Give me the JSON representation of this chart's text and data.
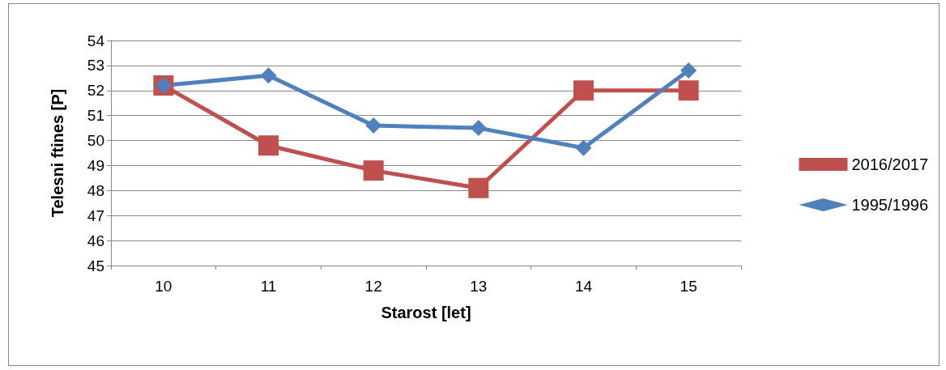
{
  "chart_data": {
    "type": "line",
    "xlabel": "Starost [let]",
    "ylabel": "Telesni ftines [P]",
    "categories": [
      "10",
      "11",
      "12",
      "13",
      "14",
      "15"
    ],
    "series": [
      {
        "name": "2016/2017",
        "color": "#c0504d",
        "marker": "square",
        "values": [
          52.2,
          49.8,
          48.8,
          48.1,
          52.0,
          52.0
        ]
      },
      {
        "name": "1995/1996",
        "color": "#4f81bd",
        "marker": "diamond",
        "values": [
          52.2,
          52.6,
          50.6,
          50.5,
          49.7,
          52.8
        ]
      }
    ],
    "ylim": [
      45,
      54
    ],
    "yticks": [
      45,
      46,
      47,
      48,
      49,
      50,
      51,
      52,
      53,
      54
    ],
    "grid": "y",
    "legend": "right"
  }
}
